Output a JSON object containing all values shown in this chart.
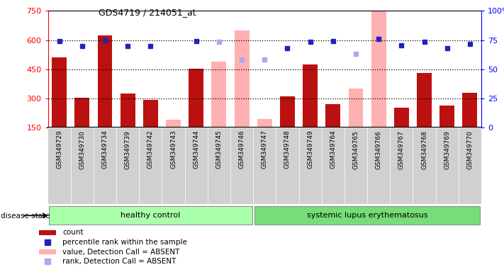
{
  "title": "GDS4719 / 214051_at",
  "samples": [
    "GSM349729",
    "GSM349730",
    "GSM349734",
    "GSM349739",
    "GSM349742",
    "GSM349743",
    "GSM349744",
    "GSM349745",
    "GSM349746",
    "GSM349747",
    "GSM349748",
    "GSM349749",
    "GSM349764",
    "GSM349765",
    "GSM349766",
    "GSM349767",
    "GSM349768",
    "GSM349769",
    "GSM349770"
  ],
  "count": [
    510,
    305,
    625,
    325,
    295,
    null,
    455,
    null,
    null,
    null,
    310,
    475,
    270,
    null,
    null,
    255,
    430,
    265,
    330
  ],
  "absent_value": [
    null,
    null,
    null,
    null,
    null,
    190,
    null,
    490,
    650,
    195,
    null,
    null,
    null,
    350,
    755,
    null,
    null,
    null,
    null
  ],
  "percentile_rank": [
    595,
    570,
    600,
    570,
    570,
    null,
    595,
    null,
    null,
    null,
    560,
    590,
    595,
    null,
    605,
    575,
    590,
    560,
    580
  ],
  "absent_rank": [
    null,
    null,
    null,
    null,
    null,
    null,
    null,
    590,
    500,
    500,
    null,
    null,
    null,
    530,
    610,
    null,
    null,
    null,
    null
  ],
  "group1_n": 9,
  "group2_n": 10,
  "ylim": [
    150,
    750
  ],
  "yticks_left": [
    150,
    300,
    450,
    600,
    750
  ],
  "yticks_right_vals": [
    150,
    300,
    450,
    600,
    750
  ],
  "yticks_right_labels": [
    "0",
    "25",
    "50",
    "75",
    "100%"
  ],
  "gridlines_at": [
    300,
    450,
    600
  ],
  "bar_color": "#bb1111",
  "absent_bar_color": "#ffb0b0",
  "dot_color": "#2222bb",
  "absent_dot_color": "#aaaaee",
  "group1_color": "#aaffaa",
  "group2_color": "#77dd77",
  "xlabels_bg_color": "#d0d0d0",
  "chart_bg_color": "#ffffff"
}
